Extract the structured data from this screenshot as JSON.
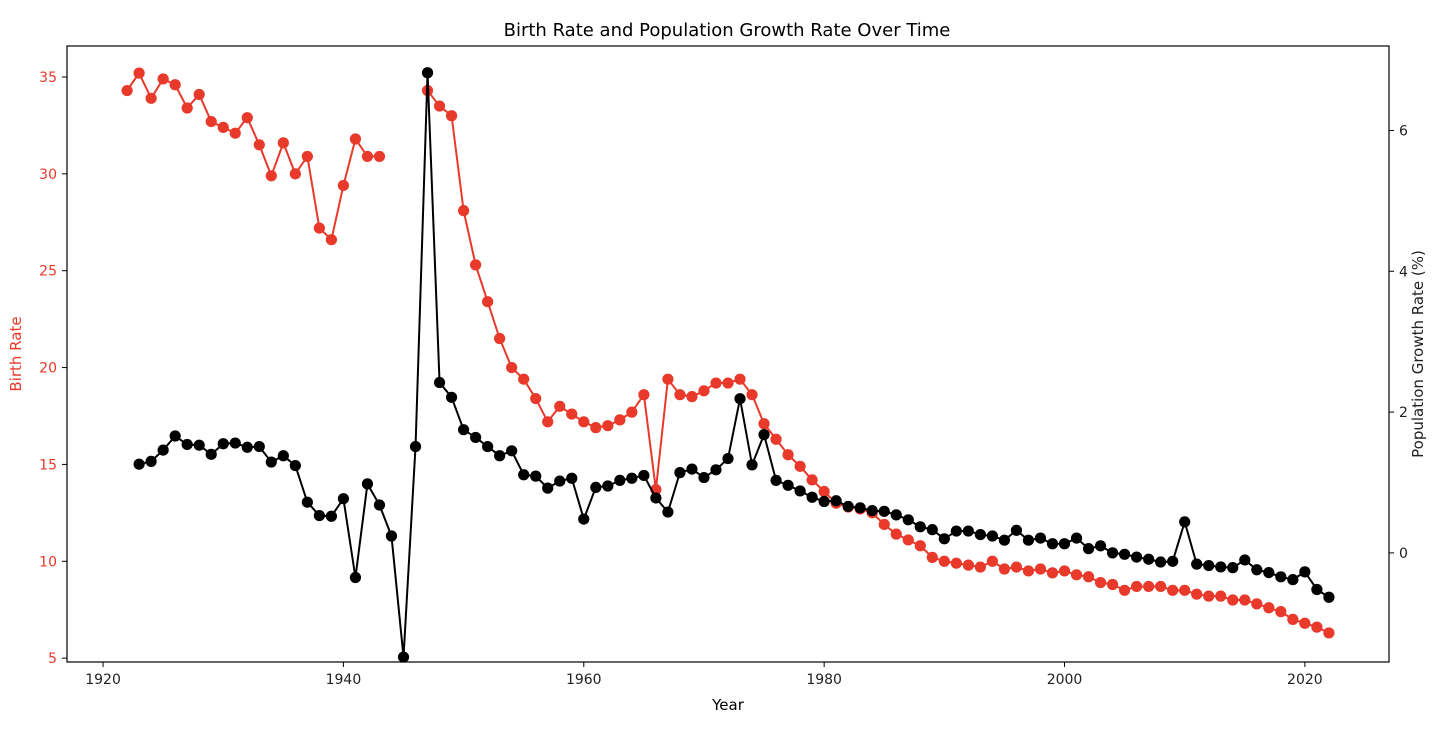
{
  "chart_data": {
    "type": "line",
    "title": "Birth Rate and Population Growth Rate Over Time",
    "xlabel": "Year",
    "ylabel_left": "Birth Rate",
    "ylabel_right": "Population Growth Rate (%)",
    "xlim": [
      1917,
      2027
    ],
    "ylim_left": [
      4.8,
      36.6
    ],
    "ylim_right": [
      -1.55,
      7.2
    ],
    "x_ticks": [
      1920,
      1940,
      1960,
      1980,
      2000,
      2020
    ],
    "y_ticks_left": [
      5,
      10,
      15,
      20,
      25,
      30,
      35
    ],
    "y_ticks_right": [
      0,
      2,
      4,
      6
    ],
    "grid": false,
    "legend": "none",
    "colors": {
      "birth_rate": "#e8392b",
      "growth_rate": "#000000",
      "left_axis_text": "#e8392b",
      "right_axis_text": "#222222"
    },
    "series": [
      {
        "axis": "left",
        "color": "#e8392b",
        "x": [
          1922,
          1923,
          1924,
          1925,
          1926,
          1927,
          1928,
          1929,
          1930,
          1931,
          1932,
          1933,
          1934,
          1935,
          1936,
          1937,
          1938,
          1939,
          1940,
          1941,
          1942,
          1943,
          null,
          1947,
          1948,
          1949,
          1950,
          1951,
          1952,
          1953,
          1954,
          1955,
          1956,
          1957,
          1958,
          1959,
          1960,
          1961,
          1962,
          1963,
          1964,
          1965,
          1966,
          1967,
          1968,
          1969,
          1970,
          1971,
          1972,
          1973,
          1974,
          1975,
          1976,
          1977,
          1978,
          1979,
          1980,
          1981,
          1982,
          1983,
          1984,
          1985,
          1986,
          1987,
          1988,
          1989,
          1990,
          1991,
          1992,
          1993,
          1994,
          1995,
          1996,
          1997,
          1998,
          1999,
          2000,
          2001,
          2002,
          2003,
          2004,
          2005,
          2006,
          2007,
          2008,
          2009,
          2010,
          2011,
          2012,
          2013,
          2014,
          2015,
          2016,
          2017,
          2018,
          2019,
          2020,
          2021,
          2022
        ],
        "y": [
          34.3,
          35.2,
          33.9,
          34.9,
          34.6,
          33.4,
          34.1,
          32.7,
          32.4,
          32.1,
          32.9,
          31.5,
          29.9,
          31.6,
          30.0,
          30.9,
          27.2,
          26.6,
          29.4,
          31.8,
          30.9,
          30.9,
          null,
          34.3,
          33.5,
          33.0,
          28.1,
          25.3,
          23.4,
          21.5,
          20.0,
          19.4,
          18.4,
          17.2,
          18.0,
          17.6,
          17.2,
          16.9,
          17.0,
          17.3,
          17.7,
          18.6,
          13.7,
          19.4,
          18.6,
          18.5,
          18.8,
          19.2,
          19.2,
          19.4,
          18.6,
          17.1,
          16.3,
          15.5,
          14.9,
          14.2,
          13.6,
          13.0,
          12.8,
          12.7,
          12.5,
          11.9,
          11.4,
          11.1,
          10.8,
          10.2,
          10.0,
          9.9,
          9.8,
          9.7,
          10.0,
          9.6,
          9.7,
          9.5,
          9.6,
          9.4,
          9.5,
          9.3,
          9.2,
          8.9,
          8.8,
          8.5,
          8.7,
          8.7,
          8.7,
          8.5,
          8.5,
          8.3,
          8.2,
          8.2,
          8.0,
          8.0,
          7.8,
          7.6,
          7.4,
          7.0,
          6.8,
          6.6,
          6.3
        ]
      },
      {
        "axis": "right",
        "color": "#000000",
        "x": [
          1923,
          1924,
          1925,
          1926,
          1927,
          1928,
          1929,
          1930,
          1931,
          1932,
          1933,
          1934,
          1935,
          1936,
          1937,
          1938,
          1939,
          1940,
          1941,
          1942,
          1943,
          1944,
          1945,
          1946,
          1947,
          1948,
          1949,
          1950,
          1951,
          1952,
          1953,
          1954,
          1955,
          1956,
          1957,
          1958,
          1959,
          1960,
          1961,
          1962,
          1963,
          1964,
          1965,
          1966,
          1967,
          1968,
          1969,
          1970,
          1971,
          1972,
          1973,
          1974,
          1975,
          1976,
          1977,
          1978,
          1979,
          1980,
          1981,
          1982,
          1983,
          1984,
          1985,
          1986,
          1987,
          1988,
          1989,
          1990,
          1991,
          1992,
          1993,
          1994,
          1995,
          1996,
          1997,
          1998,
          1999,
          2000,
          2001,
          2002,
          2003,
          2004,
          2005,
          2006,
          2007,
          2008,
          2009,
          2010,
          2011,
          2012,
          2013,
          2014,
          2015,
          2016,
          2017,
          2018,
          2019,
          2020,
          2021,
          2022
        ],
        "y": [
          1.26,
          1.3,
          1.46,
          1.66,
          1.54,
          1.53,
          1.4,
          1.55,
          1.56,
          1.5,
          1.51,
          1.29,
          1.38,
          1.24,
          0.72,
          0.53,
          0.52,
          0.77,
          -0.35,
          0.98,
          0.68,
          0.24,
          -1.48,
          1.51,
          6.82,
          2.42,
          2.21,
          1.75,
          1.64,
          1.51,
          1.38,
          1.45,
          1.11,
          1.09,
          0.92,
          1.02,
          1.06,
          0.48,
          0.93,
          0.95,
          1.03,
          1.06,
          1.1,
          0.78,
          0.58,
          1.14,
          1.19,
          1.07,
          1.18,
          1.34,
          2.19,
          1.25,
          1.68,
          1.03,
          0.96,
          0.88,
          0.79,
          0.73,
          0.74,
          0.66,
          0.64,
          0.6,
          0.59,
          0.54,
          0.47,
          0.37,
          0.33,
          0.2,
          0.31,
          0.31,
          0.26,
          0.24,
          0.18,
          0.32,
          0.18,
          0.21,
          0.13,
          0.13,
          0.21,
          0.06,
          0.1,
          0.0,
          -0.02,
          -0.06,
          -0.09,
          -0.13,
          -0.12,
          0.44,
          -0.16,
          -0.18,
          -0.2,
          -0.21,
          -0.1,
          -0.24,
          -0.28,
          -0.34,
          -0.38,
          -0.27,
          -0.52,
          -0.63
        ]
      }
    ]
  }
}
